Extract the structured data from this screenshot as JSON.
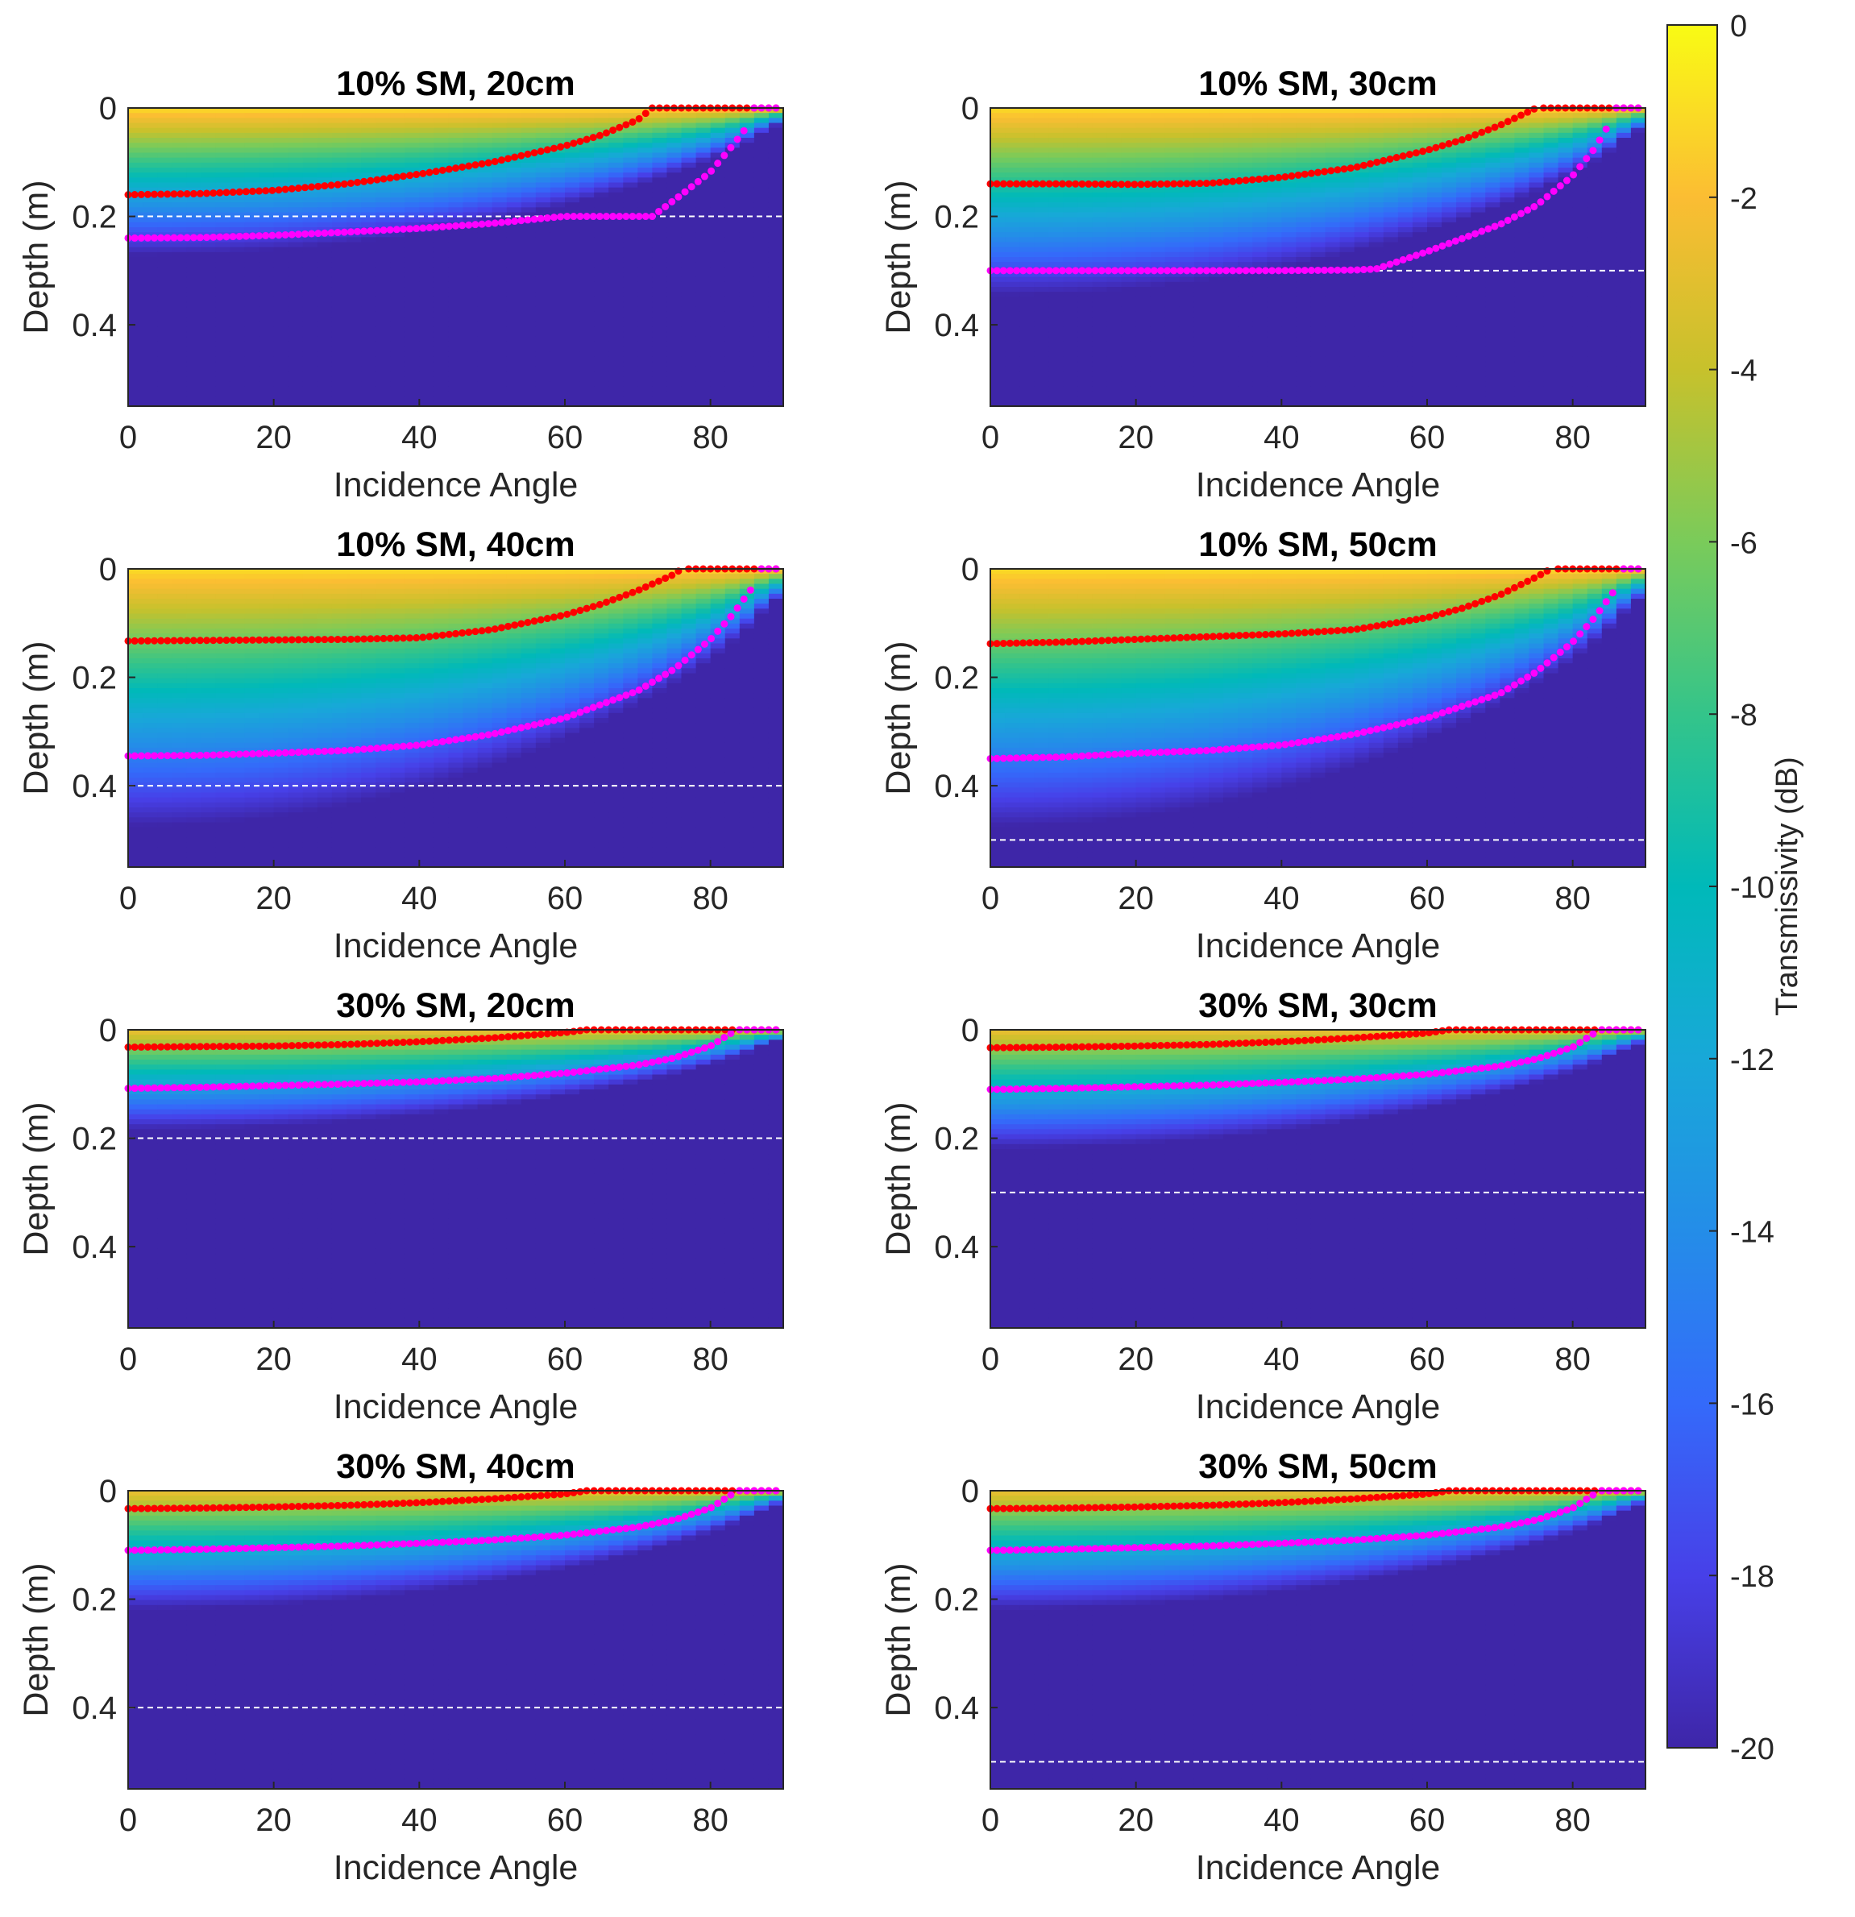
{
  "figure": {
    "colorbar": {
      "label": "Transmissivity (dB)",
      "range": [
        -20,
        0
      ],
      "ticks": [
        0,
        -2,
        -4,
        -6,
        -8,
        -10,
        -12,
        -14,
        -16,
        -18,
        -20
      ],
      "colormap": "parula"
    },
    "marker_colors": {
      "red_curve": "#ff0000",
      "magenta_curve": "#ff00ff",
      "layer_line": "#ffffff"
    }
  },
  "chart_data": [
    {
      "type": "heatmap",
      "title": "10% SM,  20cm",
      "xlabel": "Incidence Angle",
      "ylabel": "Depth (m)",
      "xlim": [
        0,
        90
      ],
      "ylim": [
        0,
        0.55
      ],
      "xticks": [
        "0",
        "20",
        "40",
        "60",
        "80"
      ],
      "yticks": [
        "0",
        "0.2",
        "0.4"
      ],
      "soil_moisture_pct": 10,
      "layer_depth_m": 0.2,
      "surface_db": -1.0,
      "decay_db_per_m": 70,
      "floor_depth_m": 0.34,
      "red_curve": {
        "angles": [
          0,
          10,
          20,
          30,
          40,
          50,
          60,
          65,
          70,
          72
        ],
        "depths": [
          0.16,
          0.158,
          0.152,
          0.14,
          0.122,
          0.1,
          0.07,
          0.05,
          0.022,
          0.0
        ]
      },
      "magenta_curve": {
        "angles": [
          0,
          10,
          20,
          30,
          40,
          50,
          59,
          60,
          70,
          72,
          76,
          80,
          83,
          85
        ],
        "depths": [
          0.24,
          0.239,
          0.235,
          0.229,
          0.222,
          0.213,
          0.201,
          0.2,
          0.2,
          0.2,
          0.16,
          0.118,
          0.07,
          0.035
        ]
      }
    },
    {
      "type": "heatmap",
      "title": "10% SM,  30cm",
      "xlabel": "Incidence Angle",
      "ylabel": "Depth (m)",
      "xlim": [
        0,
        90
      ],
      "ylim": [
        0,
        0.55
      ],
      "xticks": [
        "0",
        "20",
        "40",
        "60",
        "80"
      ],
      "yticks": [
        "0",
        "0.2",
        "0.4"
      ],
      "soil_moisture_pct": 10,
      "layer_depth_m": 0.3,
      "surface_db": -1.0,
      "decay_db_per_m": 55,
      "floor_depth_m": 0.42,
      "red_curve": {
        "angles": [
          0,
          10,
          20,
          30,
          40,
          50,
          60,
          65,
          70,
          75
        ],
        "depths": [
          0.14,
          0.14,
          0.141,
          0.139,
          0.128,
          0.11,
          0.078,
          0.058,
          0.032,
          0.0
        ]
      },
      "magenta_curve": {
        "angles": [
          0,
          10,
          20,
          30,
          40,
          50,
          53,
          60,
          70,
          75,
          80,
          83,
          85
        ],
        "depths": [
          0.3,
          0.3,
          0.3,
          0.3,
          0.3,
          0.299,
          0.297,
          0.265,
          0.215,
          0.18,
          0.125,
          0.075,
          0.03
        ]
      }
    },
    {
      "type": "heatmap",
      "title": "10% SM,  40cm",
      "xlabel": "Incidence Angle",
      "ylabel": "Depth (m)",
      "xlim": [
        0,
        90
      ],
      "ylim": [
        0,
        0.55
      ],
      "xticks": [
        "0",
        "20",
        "40",
        "60",
        "80"
      ],
      "yticks": [
        "0",
        "0.2",
        "0.4"
      ],
      "soil_moisture_pct": 10,
      "layer_depth_m": 0.4,
      "surface_db": -1.0,
      "decay_db_per_m": 40,
      "floor_depth_m": 0.49,
      "red_curve": {
        "angles": [
          0,
          10,
          20,
          30,
          40,
          50,
          60,
          65,
          70,
          75,
          76
        ],
        "depths": [
          0.133,
          0.132,
          0.131,
          0.13,
          0.127,
          0.112,
          0.085,
          0.065,
          0.04,
          0.01,
          0.0
        ]
      },
      "magenta_curve": {
        "angles": [
          0,
          10,
          20,
          30,
          40,
          50,
          60,
          70,
          75,
          80,
          83,
          86
        ],
        "depths": [
          0.345,
          0.344,
          0.34,
          0.335,
          0.325,
          0.305,
          0.275,
          0.225,
          0.185,
          0.13,
          0.085,
          0.03
        ]
      }
    },
    {
      "type": "heatmap",
      "title": "10% SM,  50cm",
      "xlabel": "Incidence Angle",
      "ylabel": "Depth (m)",
      "xlim": [
        0,
        90
      ],
      "ylim": [
        0,
        0.55
      ],
      "xticks": [
        "0",
        "20",
        "40",
        "60",
        "80"
      ],
      "yticks": [
        "0",
        "0.2",
        "0.4"
      ],
      "soil_moisture_pct": 10,
      "layer_depth_m": 0.5,
      "surface_db": -1.0,
      "decay_db_per_m": 40,
      "floor_depth_m": 0.55,
      "red_curve": {
        "angles": [
          0,
          10,
          20,
          30,
          40,
          50,
          60,
          65,
          70,
          75,
          77
        ],
        "depths": [
          0.138,
          0.135,
          0.13,
          0.125,
          0.12,
          0.112,
          0.09,
          0.072,
          0.048,
          0.015,
          0.0
        ]
      },
      "magenta_curve": {
        "angles": [
          0,
          10,
          20,
          30,
          40,
          50,
          60,
          70,
          75,
          80,
          83,
          86
        ],
        "depths": [
          0.35,
          0.347,
          0.34,
          0.335,
          0.325,
          0.305,
          0.275,
          0.23,
          0.19,
          0.135,
          0.09,
          0.035
        ]
      }
    },
    {
      "type": "heatmap",
      "title": "30% SM,  20cm",
      "xlabel": "Incidence Angle",
      "ylabel": "Depth (m)",
      "xlim": [
        0,
        90
      ],
      "ylim": [
        0,
        0.55
      ],
      "xticks": [
        "0",
        "20",
        "40",
        "60",
        "80"
      ],
      "yticks": [
        "0",
        "0.2",
        "0.4"
      ],
      "soil_moisture_pct": 30,
      "layer_depth_m": 0.2,
      "surface_db": -2.5,
      "decay_db_per_m": 95,
      "floor_depth_m": 0.2,
      "red_curve": {
        "angles": [
          0,
          10,
          20,
          30,
          40,
          50,
          60,
          63
        ],
        "depths": [
          0.032,
          0.031,
          0.03,
          0.027,
          0.022,
          0.015,
          0.005,
          0.0
        ]
      },
      "magenta_curve": {
        "angles": [
          0,
          10,
          20,
          30,
          40,
          50,
          60,
          70,
          75,
          80,
          83
        ],
        "depths": [
          0.108,
          0.106,
          0.103,
          0.1,
          0.096,
          0.09,
          0.08,
          0.065,
          0.052,
          0.03,
          0.005
        ]
      }
    },
    {
      "type": "heatmap",
      "title": "30% SM,  30cm",
      "xlabel": "Incidence Angle",
      "ylabel": "Depth (m)",
      "xlim": [
        0,
        90
      ],
      "ylim": [
        0,
        0.55
      ],
      "xticks": [
        "0",
        "20",
        "40",
        "60",
        "80"
      ],
      "yticks": [
        "0",
        "0.2",
        "0.4"
      ],
      "soil_moisture_pct": 30,
      "layer_depth_m": 0.3,
      "surface_db": -2.5,
      "decay_db_per_m": 80,
      "floor_depth_m": 0.23,
      "red_curve": {
        "angles": [
          0,
          10,
          20,
          30,
          40,
          50,
          60,
          63
        ],
        "depths": [
          0.033,
          0.032,
          0.03,
          0.027,
          0.022,
          0.015,
          0.006,
          0.0
        ]
      },
      "magenta_curve": {
        "angles": [
          0,
          10,
          20,
          30,
          40,
          50,
          60,
          70,
          75,
          80,
          83
        ],
        "depths": [
          0.11,
          0.108,
          0.105,
          0.102,
          0.097,
          0.091,
          0.082,
          0.067,
          0.054,
          0.032,
          0.006
        ]
      }
    },
    {
      "type": "heatmap",
      "title": "30% SM,  40cm",
      "xlabel": "Incidence Angle",
      "ylabel": "Depth (m)",
      "xlim": [
        0,
        90
      ],
      "ylim": [
        0,
        0.55
      ],
      "xticks": [
        "0",
        "20",
        "40",
        "60",
        "80"
      ],
      "yticks": [
        "0",
        "0.2",
        "0.4"
      ],
      "soil_moisture_pct": 30,
      "layer_depth_m": 0.4,
      "surface_db": -2.5,
      "decay_db_per_m": 80,
      "floor_depth_m": 0.23,
      "red_curve": {
        "angles": [
          0,
          10,
          20,
          30,
          40,
          50,
          60,
          63
        ],
        "depths": [
          0.033,
          0.032,
          0.03,
          0.027,
          0.022,
          0.015,
          0.006,
          0.0
        ]
      },
      "magenta_curve": {
        "angles": [
          0,
          10,
          20,
          30,
          40,
          50,
          60,
          70,
          75,
          80,
          83
        ],
        "depths": [
          0.11,
          0.108,
          0.105,
          0.102,
          0.097,
          0.091,
          0.082,
          0.067,
          0.054,
          0.032,
          0.006
        ]
      }
    },
    {
      "type": "heatmap",
      "title": "30% SM,  50cm",
      "xlabel": "Incidence Angle",
      "ylabel": "Depth (m)",
      "xlim": [
        0,
        90
      ],
      "ylim": [
        0,
        0.55
      ],
      "xticks": [
        "0",
        "20",
        "40",
        "60",
        "80"
      ],
      "yticks": [
        "0",
        "0.2",
        "0.4"
      ],
      "soil_moisture_pct": 30,
      "layer_depth_m": 0.5,
      "surface_db": -2.5,
      "decay_db_per_m": 80,
      "floor_depth_m": 0.23,
      "red_curve": {
        "angles": [
          0,
          10,
          20,
          30,
          40,
          50,
          60,
          63
        ],
        "depths": [
          0.033,
          0.032,
          0.03,
          0.027,
          0.022,
          0.015,
          0.006,
          0.0
        ]
      },
      "magenta_curve": {
        "angles": [
          0,
          10,
          20,
          30,
          40,
          50,
          60,
          70,
          75,
          80,
          83
        ],
        "depths": [
          0.11,
          0.108,
          0.105,
          0.102,
          0.097,
          0.091,
          0.082,
          0.067,
          0.054,
          0.032,
          0.006
        ]
      }
    }
  ]
}
